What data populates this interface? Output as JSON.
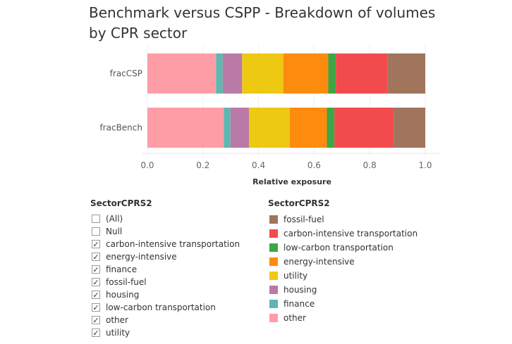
{
  "title": "Benchmark versus CSPP - Breakdown of volumes by CPR sector",
  "chart_data": {
    "type": "bar",
    "orientation": "horizontal",
    "stacked": true,
    "categories": [
      "fracCSP",
      "fracBench"
    ],
    "xlabel": "Relative exposure",
    "xlim": [
      0,
      1.0
    ],
    "xticks": [
      "0.0",
      "0.2",
      "0.4",
      "0.6",
      "0.8",
      "1.0"
    ],
    "series": [
      {
        "name": "other",
        "color": "#FF9DA7",
        "values": [
          0.247,
          0.275
        ]
      },
      {
        "name": "finance",
        "color": "#5FB7AF",
        "values": [
          0.024,
          0.024
        ]
      },
      {
        "name": "housing",
        "color": "#B97AA7",
        "values": [
          0.07,
          0.067
        ]
      },
      {
        "name": "utility",
        "color": "#EDC912",
        "values": [
          0.148,
          0.146
        ]
      },
      {
        "name": "energy-intensive",
        "color": "#FC8B0E",
        "values": [
          0.162,
          0.134
        ]
      },
      {
        "name": "low-carbon transportation",
        "color": "#3EA646",
        "values": [
          0.027,
          0.027
        ]
      },
      {
        "name": "carbon-intensive transportation",
        "color": "#F24B4E",
        "values": [
          0.187,
          0.213
        ]
      },
      {
        "name": "fossil-fuel",
        "color": "#A0755B",
        "values": [
          0.135,
          0.114
        ]
      }
    ]
  },
  "filter": {
    "title": "SectorCPRS2",
    "items": [
      {
        "label": "(All)",
        "checked": false
      },
      {
        "label": "Null",
        "checked": false
      },
      {
        "label": "carbon-intensive transportation",
        "checked": true
      },
      {
        "label": "energy-intensive",
        "checked": true
      },
      {
        "label": "finance",
        "checked": true
      },
      {
        "label": "fossil-fuel",
        "checked": true
      },
      {
        "label": "housing",
        "checked": true
      },
      {
        "label": "low-carbon transportation",
        "checked": true
      },
      {
        "label": "other",
        "checked": true
      },
      {
        "label": "utility",
        "checked": true
      }
    ]
  },
  "legend": {
    "title": "SectorCPRS2",
    "items": [
      {
        "label": "fossil-fuel",
        "color": "#A0755B"
      },
      {
        "label": "carbon-intensive transportation",
        "color": "#F24B4E"
      },
      {
        "label": "low-carbon transportation",
        "color": "#3EA646"
      },
      {
        "label": "energy-intensive",
        "color": "#FC8B0E"
      },
      {
        "label": "utility",
        "color": "#EDC912"
      },
      {
        "label": "housing",
        "color": "#B97AA7"
      },
      {
        "label": "finance",
        "color": "#5FB7AF"
      },
      {
        "label": "other",
        "color": "#FF9DA7"
      }
    ]
  }
}
